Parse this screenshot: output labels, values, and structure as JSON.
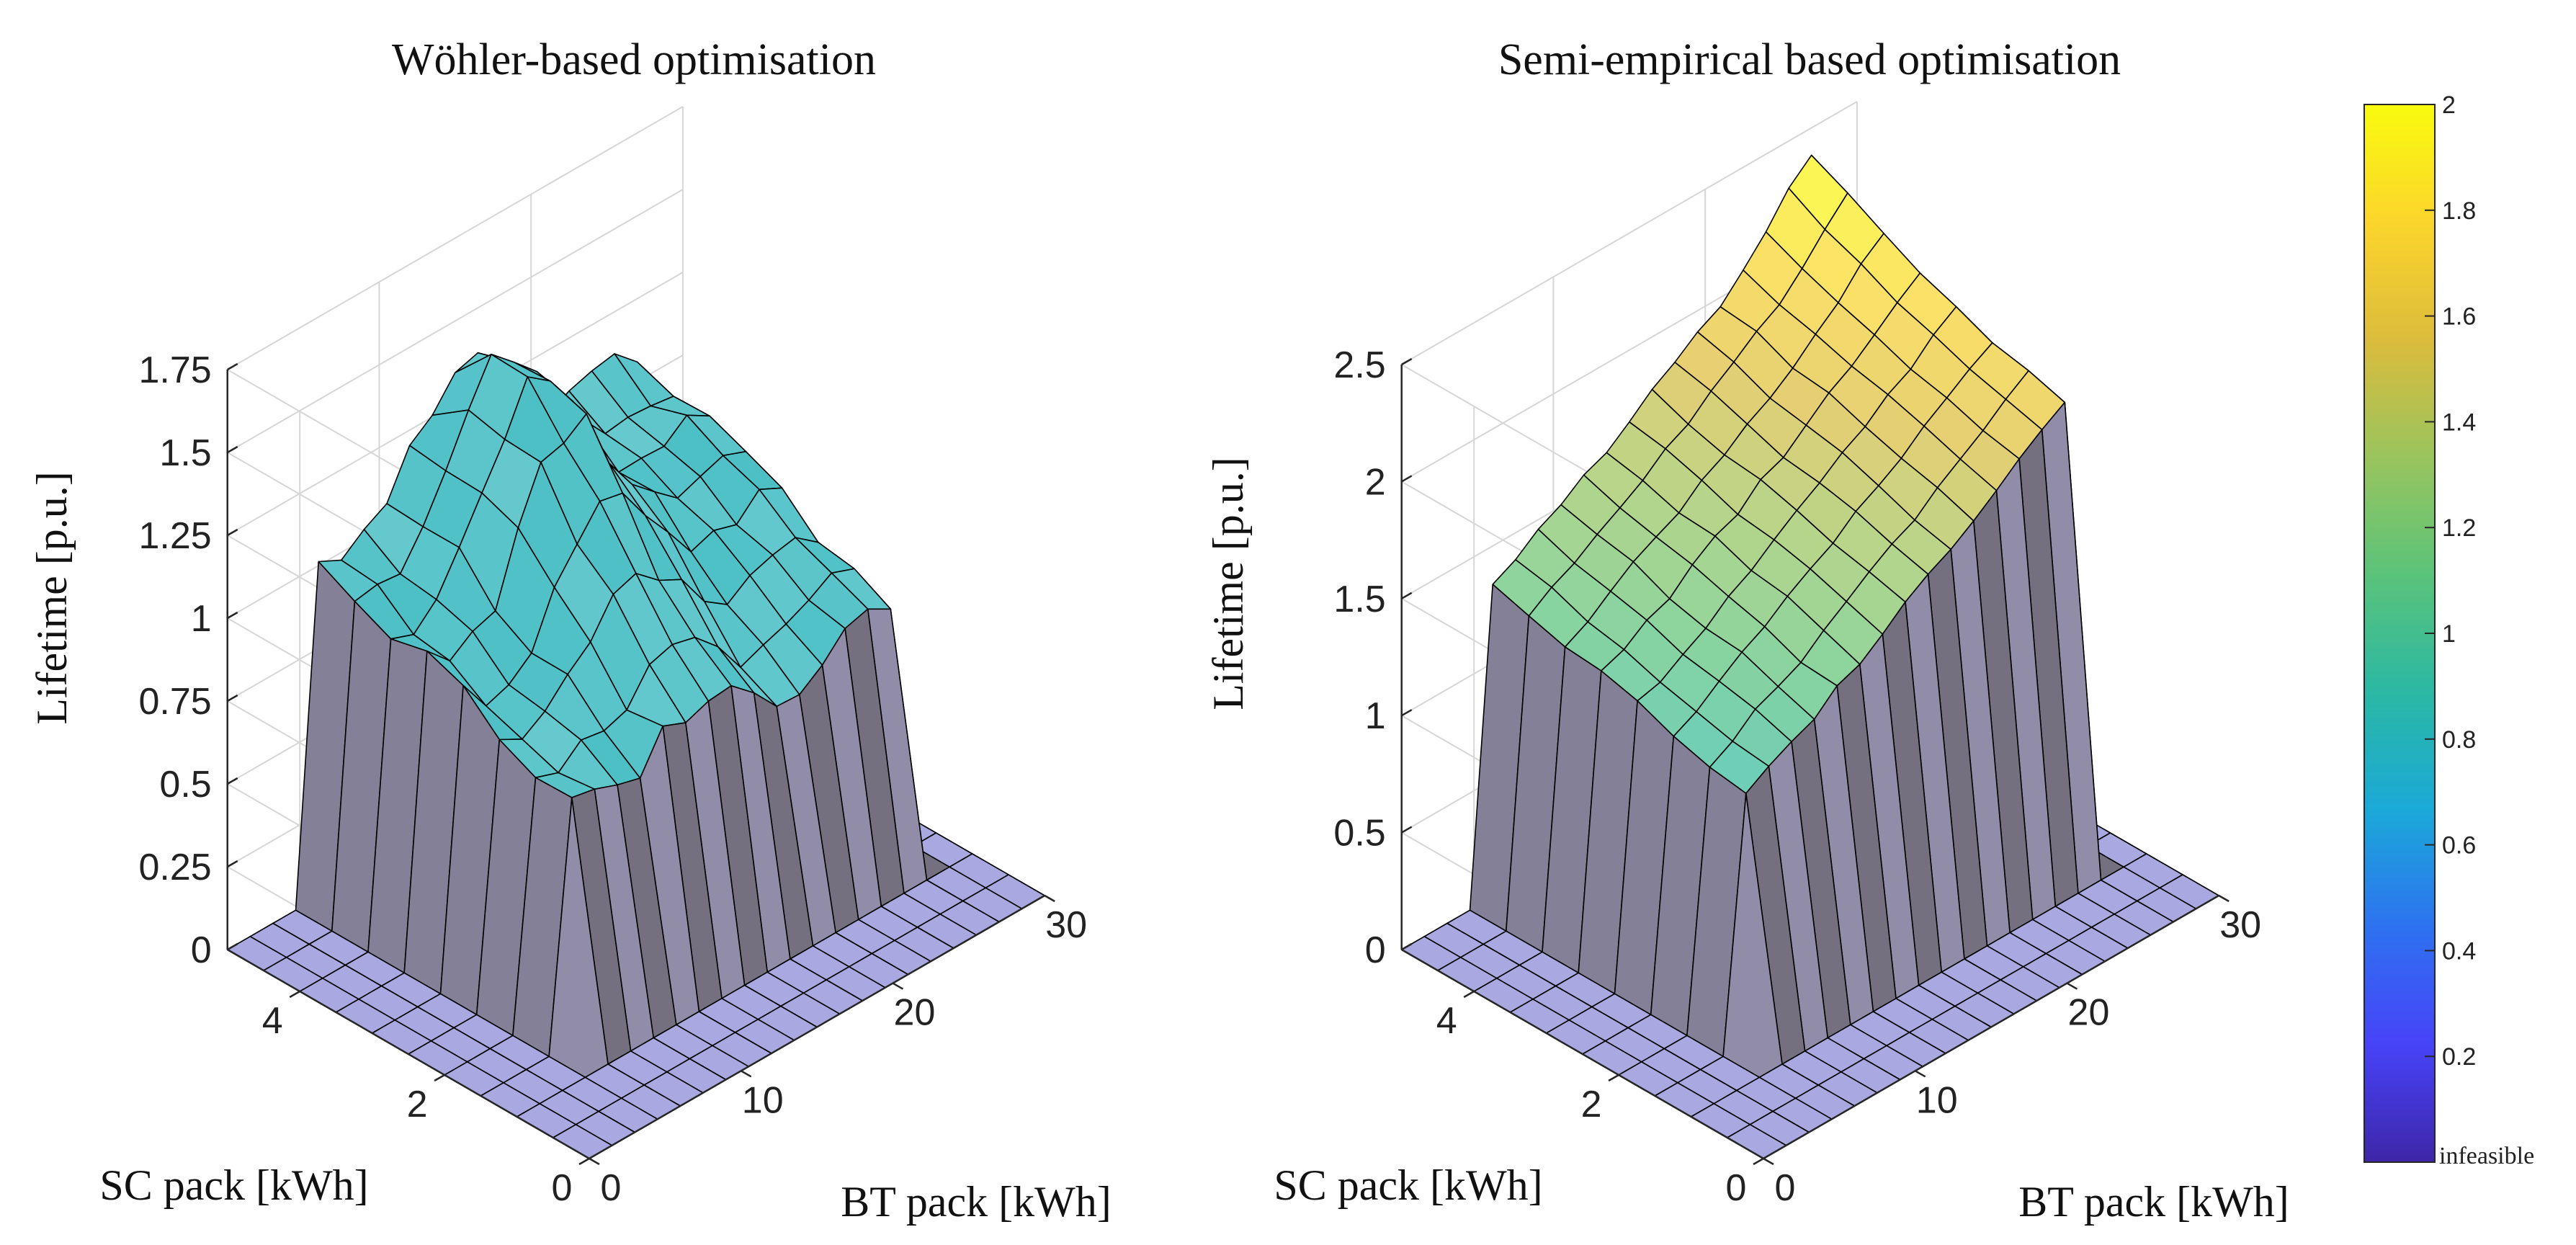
{
  "chart_data": [
    {
      "type": "surface3d",
      "title": "Wöhler-based optimisation",
      "xlabel": "BT pack [kWh]",
      "ylabel": "SC pack [kWh]",
      "zlabel": "Lifetime [p.u.]",
      "x_ticks": [
        "0",
        "10",
        "20",
        "30"
      ],
      "y_ticks": [
        "0",
        "2",
        "4"
      ],
      "z_ticks": [
        "0",
        "0.25",
        "0.5",
        "0.75",
        "1",
        "1.25",
        "1.5",
        "1.75"
      ],
      "xlim": [
        0,
        30
      ],
      "ylim": [
        0,
        5
      ],
      "zlim": [
        0,
        1.75
      ],
      "x_grid": [
        0,
        1.5,
        3,
        4.5,
        6,
        7.5,
        9,
        10.5,
        12,
        13.5,
        15,
        16.5,
        18,
        19.5,
        21,
        22.5,
        24,
        25.5,
        27,
        28.5,
        30
      ],
      "y_grid": [
        0,
        0.5,
        1,
        1.5,
        2,
        2.5,
        3,
        3.5,
        4,
        4.5,
        5
      ],
      "feasible_bt_range": [
        6,
        27
      ],
      "feasible_sc_range": [
        1.5,
        5
      ],
      "lifetime_at_sc_max_corner": 1.04,
      "lifetime_at_sc_min_corner": 0.74,
      "peak_lifetime": 1.5,
      "peak_at": {
        "bt": 16,
        "sc": 4
      },
      "surface_color_value": 0.8
    },
    {
      "type": "surface3d",
      "title": "Semi-empirical based optimisation",
      "xlabel": "BT pack [kWh]",
      "ylabel": "SC pack [kWh]",
      "zlabel": "Lifetime [p.u.]",
      "x_ticks": [
        "0",
        "10",
        "20",
        "30"
      ],
      "y_ticks": [
        "0",
        "2",
        "4"
      ],
      "z_ticks": [
        "0",
        "0.5",
        "1",
        "1.5",
        "2",
        "2.5"
      ],
      "xlim": [
        0,
        30
      ],
      "ylim": [
        0,
        5
      ],
      "zlim": [
        0,
        2.5
      ],
      "x_grid": [
        0,
        1.5,
        3,
        4.5,
        6,
        7.5,
        9,
        10.5,
        12,
        13.5,
        15,
        16.5,
        18,
        19.5,
        21,
        22.5,
        24,
        25.5,
        27,
        28.5,
        30
      ],
      "y_grid": [
        0,
        0.5,
        1,
        1.5,
        2,
        2.5,
        3,
        3.5,
        4,
        4.5,
        5
      ],
      "feasible_bt_range": [
        6,
        27
      ],
      "feasible_sc_range": [
        1.5,
        5
      ],
      "lifetime_at_low_bt": 1.2,
      "lifetime_at_high_bt": 2.1,
      "peak_lifetime": 2.25,
      "peak_at": {
        "bt": 27,
        "sc": 5
      }
    }
  ],
  "colorbar": {
    "min": 0,
    "max": 2,
    "tick_values": [
      0.2,
      0.4,
      0.6,
      0.8,
      1,
      1.2,
      1.4,
      1.6,
      1.8,
      2
    ],
    "tick_labels": [
      "0.2",
      "0.4",
      "0.6",
      "0.8",
      "1",
      "1.2",
      "1.4",
      "1.6",
      "1.8",
      "2"
    ],
    "min_label": "infeasible",
    "colormap": "parula",
    "stops": [
      "#3e26a8",
      "#4743f8",
      "#2e72f0",
      "#1ba9d8",
      "#2bb8a4",
      "#5bc37a",
      "#9ac45d",
      "#dcbc3c",
      "#fbd52c",
      "#f9fb0e"
    ]
  },
  "colors": {
    "floor": "#aaa8e0",
    "wall_dark": "#747080",
    "wall_light": "#f2f0fc",
    "wall_mid": "#b4b0dc",
    "edge": "#000000",
    "grid": "#d6d6d6",
    "axis": "#262626"
  }
}
